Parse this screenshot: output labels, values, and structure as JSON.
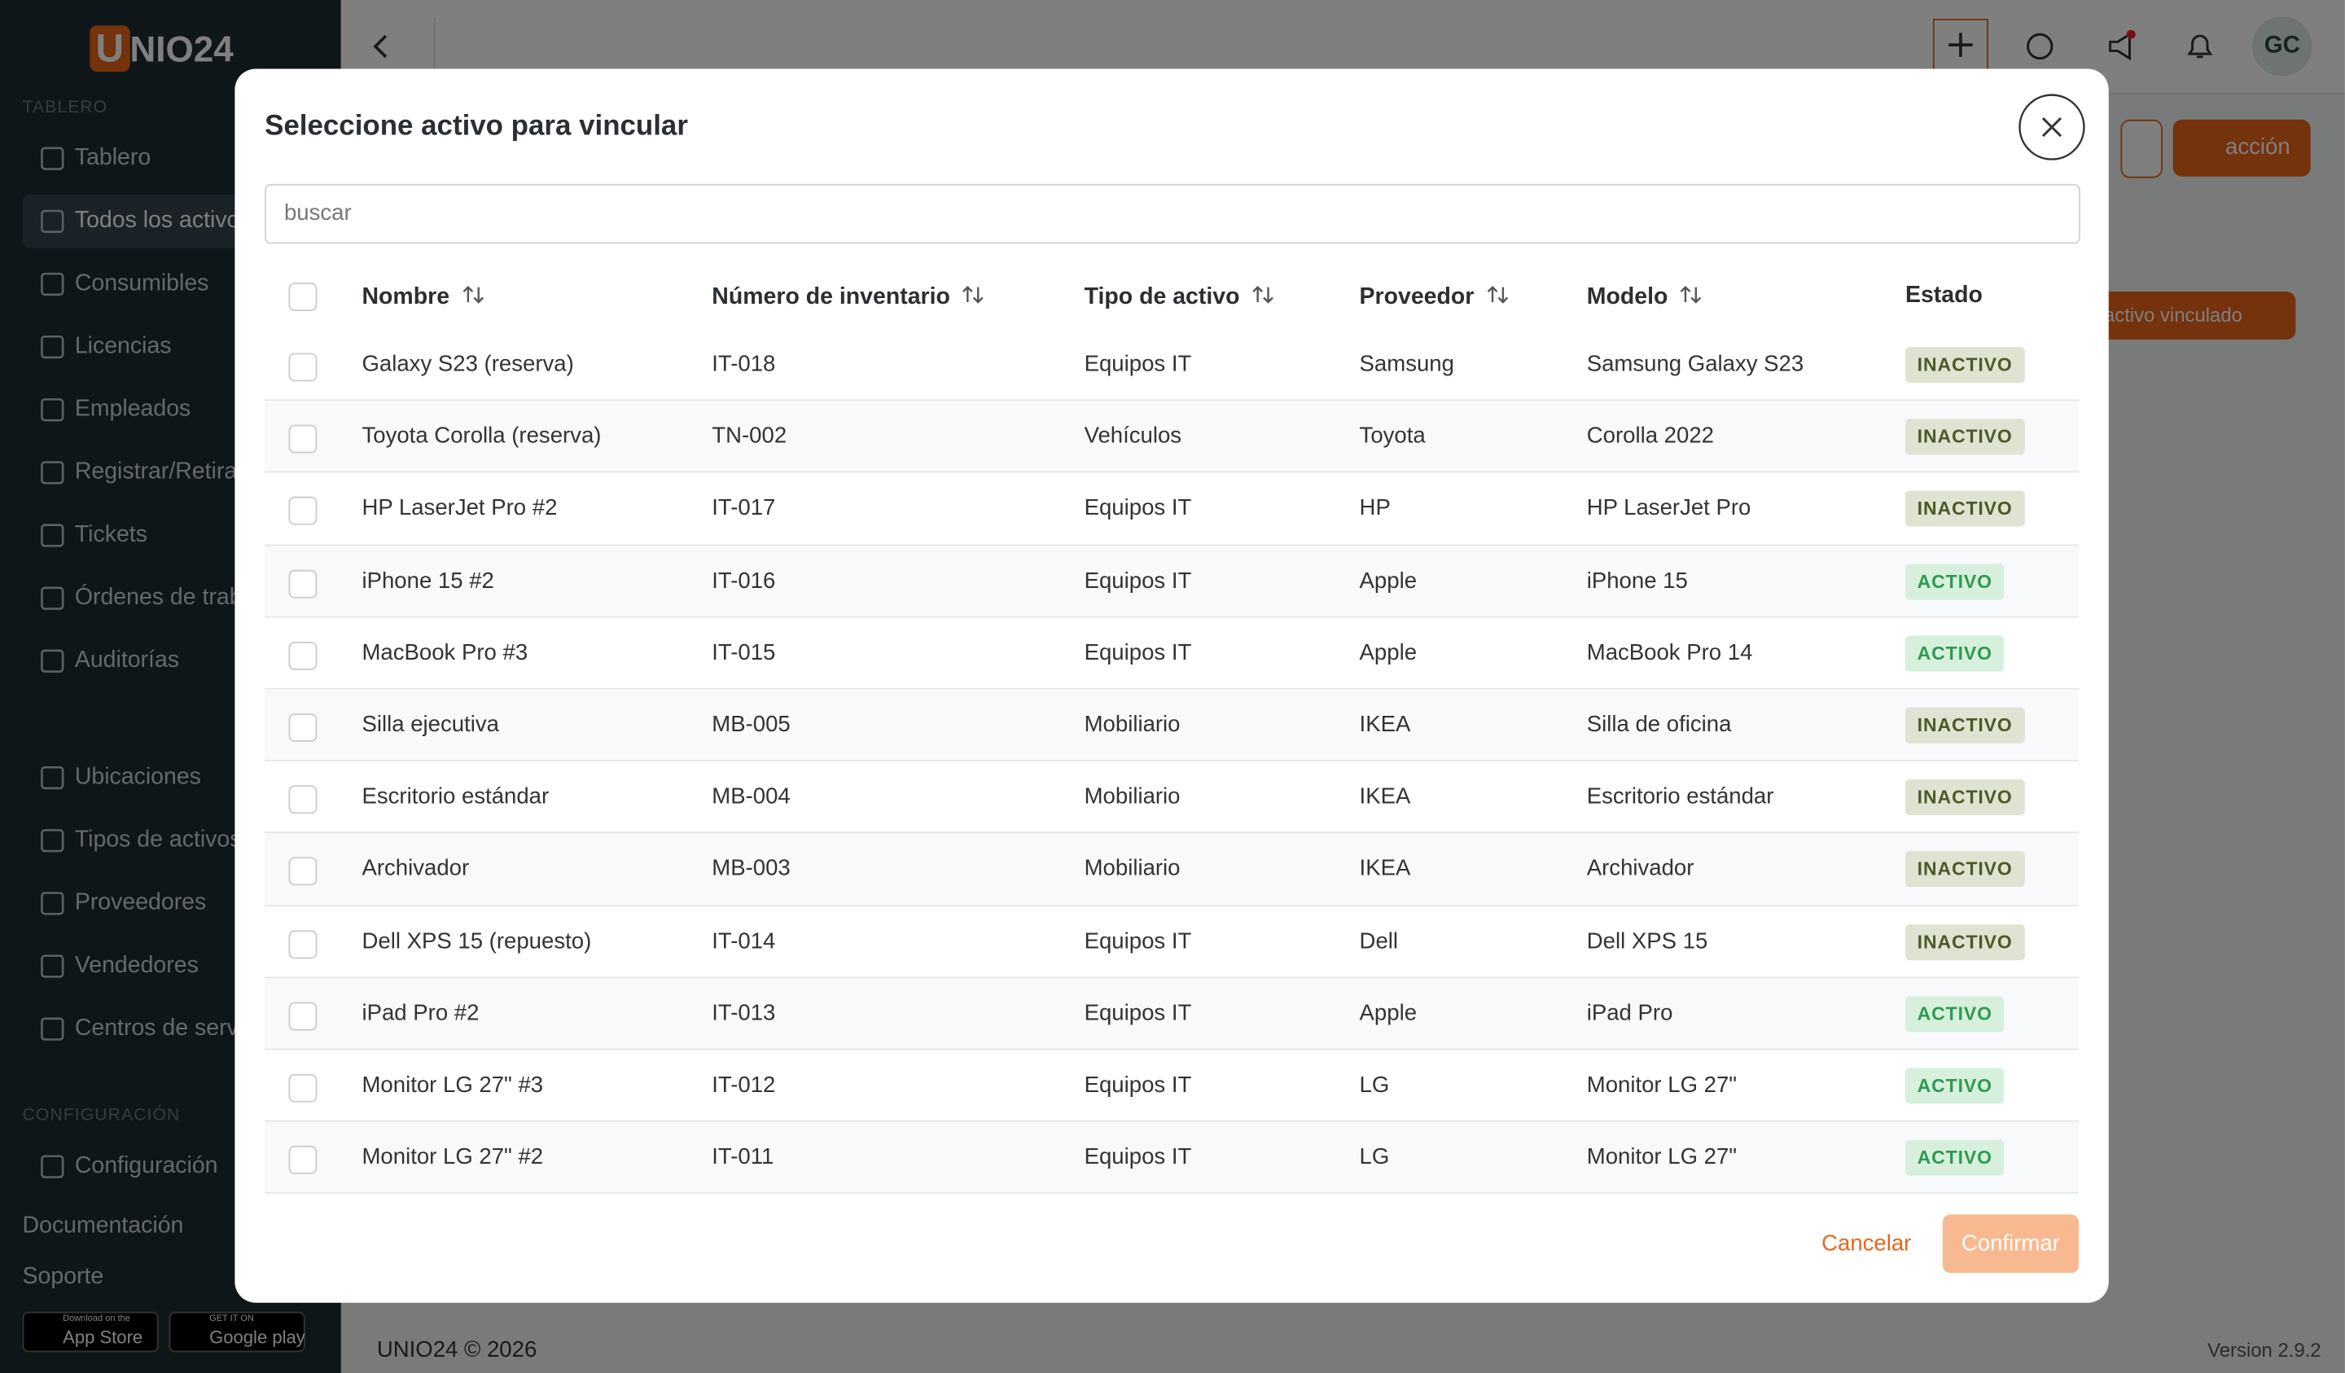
{
  "sidebar": {
    "logo": {
      "mark": "U",
      "text": "NIO24"
    },
    "groups": [
      {
        "title": "TABLERO",
        "items": [
          "Tablero",
          "Todos los activos",
          "Consumibles",
          "Licencias",
          "Empleados",
          "Registrar/Retirar",
          "Tickets",
          "Órdenes de trabajo",
          "Auditorías"
        ]
      },
      {
        "title": null,
        "items": [
          "Ubicaciones",
          "Tipos de activos",
          "Proveedores",
          "Vendedores",
          "Centros de servicio"
        ]
      },
      {
        "title": "CONFIGURACIÓN",
        "items": [
          "Configuración"
        ]
      }
    ],
    "links": [
      "Documentación",
      "Soporte"
    ],
    "stores": [
      {
        "small": "Download on the",
        "name": "App Store"
      },
      {
        "small": "GET IT ON",
        "name": "Google play"
      }
    ]
  },
  "topbar": {
    "avatar": "GC"
  },
  "page": {
    "action_button": "acción",
    "linked_button": "Agregar activo vinculado"
  },
  "footer": {
    "copyright": "UNIO24 © 2026",
    "version": "Version 2.9.2"
  },
  "modal": {
    "title": "Seleccione activo para vincular",
    "search_placeholder": "buscar",
    "table": {
      "columns": [
        "Nombre",
        "Número de inventario",
        "Tipo de activo",
        "Proveedor",
        "Modelo",
        "Estado"
      ],
      "rows": [
        [
          "Galaxy S23 (reserva)",
          "IT-018",
          "Equipos IT",
          "Samsung",
          "Samsung Galaxy S23",
          "INACTIVO"
        ],
        [
          "Toyota Corolla (reserva)",
          "TN-002",
          "Vehículos",
          "Toyota",
          "Corolla 2022",
          "INACTIVO"
        ],
        [
          "HP LaserJet Pro #2",
          "IT-017",
          "Equipos IT",
          "HP",
          "HP LaserJet Pro",
          "INACTIVO"
        ],
        [
          "iPhone 15 #2",
          "IT-016",
          "Equipos IT",
          "Apple",
          "iPhone 15",
          "ACTIVO"
        ],
        [
          "MacBook Pro #3",
          "IT-015",
          "Equipos IT",
          "Apple",
          "MacBook Pro 14",
          "ACTIVO"
        ],
        [
          "Silla ejecutiva",
          "MB-005",
          "Mobiliario",
          "IKEA",
          "Silla de oficina",
          "INACTIVO"
        ],
        [
          "Escritorio estándar",
          "MB-004",
          "Mobiliario",
          "IKEA",
          "Escritorio estándar",
          "INACTIVO"
        ],
        [
          "Archivador",
          "MB-003",
          "Mobiliario",
          "IKEA",
          "Archivador",
          "INACTIVO"
        ],
        [
          "Dell XPS 15 (repuesto)",
          "IT-014",
          "Equipos IT",
          "Dell",
          "Dell XPS 15",
          "INACTIVO"
        ],
        [
          "iPad Pro #2",
          "IT-013",
          "Equipos IT",
          "Apple",
          "iPad Pro",
          "ACTIVO"
        ],
        [
          "Monitor LG 27\" #3",
          "IT-012",
          "Equipos IT",
          "LG",
          "Monitor LG 27\"",
          "ACTIVO"
        ],
        [
          "Monitor LG 27\" #2",
          "IT-011",
          "Equipos IT",
          "LG",
          "Monitor LG 27\"",
          "ACTIVO"
        ]
      ]
    },
    "cancel": "Cancelar",
    "confirm": "Confirmar"
  }
}
